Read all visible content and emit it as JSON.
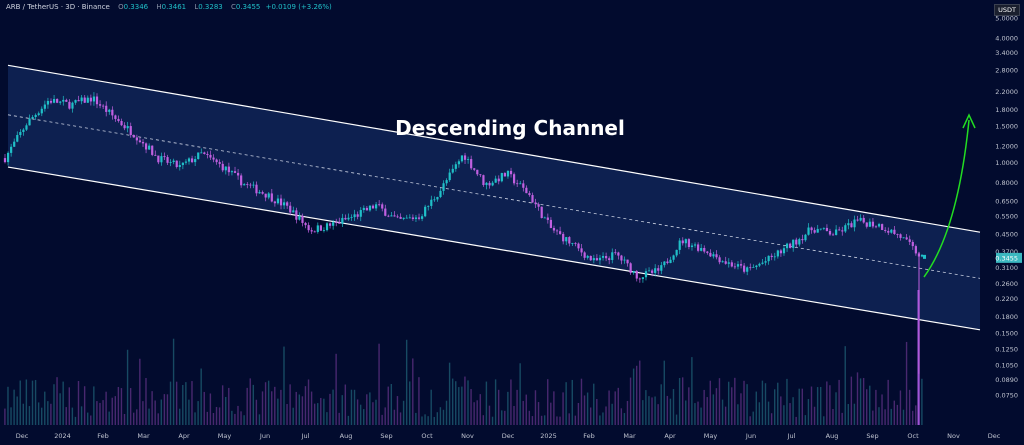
{
  "header": {
    "symbol": "ARB / TetherUS · 3D · Binance",
    "o_label": "O",
    "o_value": "0.3346",
    "h_label": "H",
    "h_value": "0.3461",
    "l_label": "L",
    "l_value": "0.3283",
    "c_label": "C",
    "c_value": "0.3455",
    "change": "+0.0109 (+3.26%)"
  },
  "unit_label": "USDT",
  "colors": {
    "background": "#020b2e",
    "up": "#20c0c8",
    "down": "#c060e0",
    "channel_line": "#ffffff",
    "channel_fill": "#1a3a7a",
    "arrow": "#22dd22",
    "price_tag": "#3bb8c0"
  },
  "chart_data": {
    "type": "candlestick",
    "title": "Descending Channel",
    "y_scale": "log",
    "x_axis": "time",
    "x_ticks": [
      "Dec",
      "2024",
      "Feb",
      "Mar",
      "Apr",
      "May",
      "Jun",
      "Jul",
      "Aug",
      "Sep",
      "Oct",
      "Nov",
      "Dec",
      "2025",
      "Feb",
      "Mar",
      "Apr",
      "May",
      "Jun",
      "Jul",
      "Aug",
      "Sep",
      "Oct",
      "Nov",
      "Dec"
    ],
    "y_ticks": [
      "5.0000",
      "4.0000",
      "3.4000",
      "2.8000",
      "2.2000",
      "1.8000",
      "1.5000",
      "1.2000",
      "1.0000",
      "0.8000",
      "0.6500",
      "0.5500",
      "0.4500",
      "0.3700",
      "0.3100",
      "0.2600",
      "0.2200",
      "0.1800",
      "0.1500",
      "0.1250",
      "0.1050",
      "0.0890",
      "0.0750"
    ],
    "last_price": "0.3455",
    "series": [
      {
        "kind": "price_anchors",
        "points": [
          {
            "x": "Dec",
            "y": 1.05
          },
          {
            "x": "2024",
            "y": 1.55
          },
          {
            "x": "2024",
            "y": 2.0
          },
          {
            "x": "Feb",
            "y": 1.9
          },
          {
            "x": "Mar",
            "y": 2.05
          },
          {
            "x": "Mar",
            "y": 1.65
          },
          {
            "x": "Apr",
            "y": 1.35
          },
          {
            "x": "May",
            "y": 1.05
          },
          {
            "x": "May",
            "y": 0.95
          },
          {
            "x": "Jun",
            "y": 1.1
          },
          {
            "x": "Jun",
            "y": 0.95
          },
          {
            "x": "Jul",
            "y": 0.78
          },
          {
            "x": "Jul",
            "y": 0.7
          },
          {
            "x": "Aug",
            "y": 0.6
          },
          {
            "x": "Aug",
            "y": 0.47
          },
          {
            "x": "Sep",
            "y": 0.5
          },
          {
            "x": "Sep",
            "y": 0.55
          },
          {
            "x": "Oct",
            "y": 0.62
          },
          {
            "x": "Oct",
            "y": 0.52
          },
          {
            "x": "Nov",
            "y": 0.55
          },
          {
            "x": "Nov",
            "y": 0.75
          },
          {
            "x": "Dec",
            "y": 1.1
          },
          {
            "x": "Dec",
            "y": 0.78
          },
          {
            "x": "2025",
            "y": 0.88
          },
          {
            "x": "2025",
            "y": 0.7
          },
          {
            "x": "Feb",
            "y": 0.48
          },
          {
            "x": "Feb",
            "y": 0.4
          },
          {
            "x": "Mar",
            "y": 0.33
          },
          {
            "x": "Mar",
            "y": 0.36
          },
          {
            "x": "Apr",
            "y": 0.28
          },
          {
            "x": "Apr",
            "y": 0.3
          },
          {
            "x": "May",
            "y": 0.42
          },
          {
            "x": "May",
            "y": 0.38
          },
          {
            "x": "Jun",
            "y": 0.33
          },
          {
            "x": "Jun",
            "y": 0.3
          },
          {
            "x": "Jul",
            "y": 0.34
          },
          {
            "x": "Jul",
            "y": 0.4
          },
          {
            "x": "Aug",
            "y": 0.48
          },
          {
            "x": "Aug",
            "y": 0.45
          },
          {
            "x": "Sep",
            "y": 0.52
          },
          {
            "x": "Sep",
            "y": 0.5
          },
          {
            "x": "Oct",
            "y": 0.44
          },
          {
            "x": "Oct",
            "y": 0.3455
          }
        ]
      }
    ],
    "channel": {
      "upper": [
        {
          "x": "Nov",
          "y": 2.95
        },
        {
          "x": "Dec",
          "y": 0.46
        }
      ],
      "mid": [
        {
          "x": "Nov",
          "y": 1.7
        },
        {
          "x": "Dec",
          "y": 0.275
        }
      ],
      "lower": [
        {
          "x": "Nov",
          "y": 0.95
        },
        {
          "x": "Dec",
          "y": 0.155
        }
      ]
    },
    "grid": false,
    "legend": "none"
  }
}
